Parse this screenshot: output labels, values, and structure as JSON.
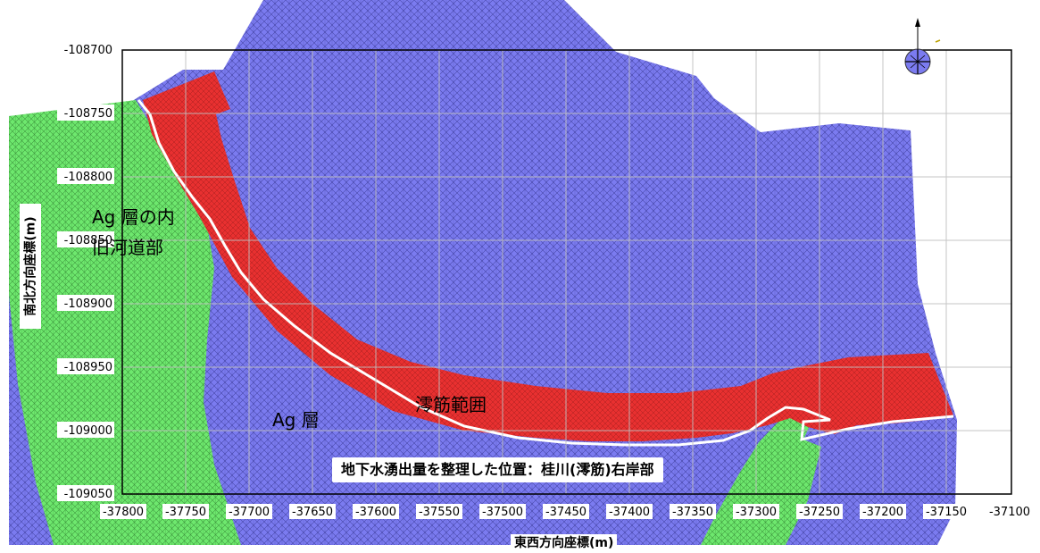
{
  "map": {
    "y_axis_label": "南北方向座標(m)",
    "x_axis_label": "東西方向座標(m)",
    "caption": "地下水湧出量を整理した位置：桂川(澪筋)右岸部",
    "region_labels": {
      "ag_inner_line1": "Ag 層の内",
      "ag_inner_line2": "旧河道部",
      "ag_layer": "Ag 層",
      "channel_range": "澪筋範囲"
    },
    "y_ticks": [
      "-108700",
      "-108750",
      "-108800",
      "-108850",
      "-108900",
      "-108950",
      "-109000",
      "-109050"
    ],
    "x_ticks": [
      "-37800",
      "-37750",
      "-37700",
      "-37650",
      "-37600",
      "-37550",
      "-37500",
      "-37450",
      "-37400",
      "-37350",
      "-37300",
      "-37250",
      "-37200",
      "-37150",
      "-37100"
    ],
    "colors": {
      "ag_layer": "#7b7bf0",
      "inner_old_channel": "#6ee86e",
      "channel_range": "#e83030",
      "boundary": "#ffffff"
    },
    "north_arrow": "compass-icon"
  }
}
